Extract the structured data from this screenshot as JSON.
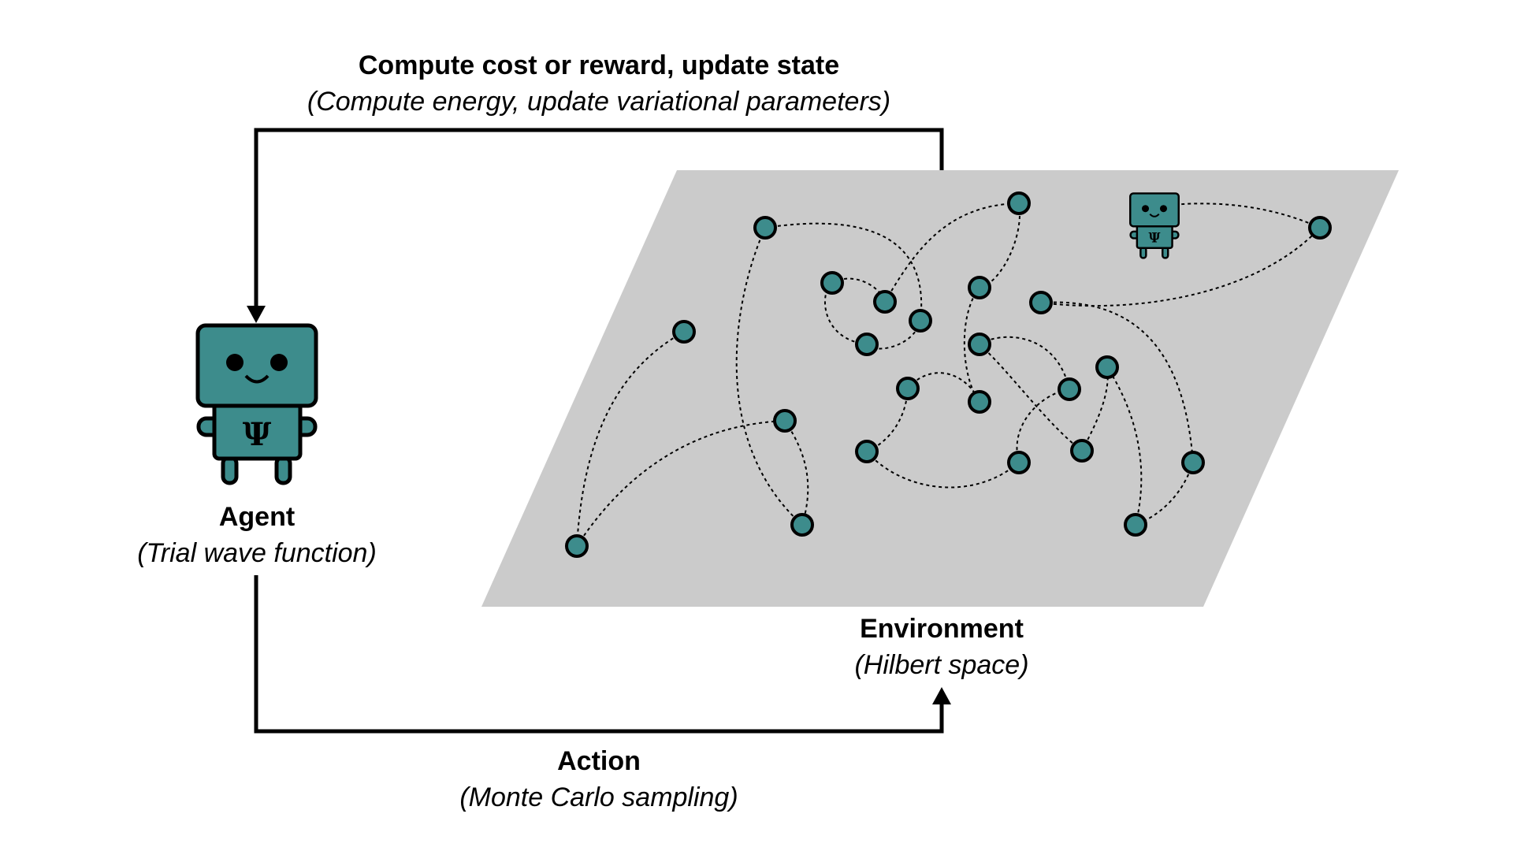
{
  "labels": {
    "top": {
      "title": "Compute cost or reward, update state",
      "subtitle": "(Compute energy, update variational parameters)"
    },
    "agent": {
      "title": "Agent",
      "subtitle": "(Trial wave function)"
    },
    "environment": {
      "title": "Environment",
      "subtitle": "(Hilbert space)"
    },
    "action": {
      "title": "Action",
      "subtitle": "(Monte Carlo sampling)"
    }
  },
  "agent_symbol": "Ψ",
  "colors": {
    "teal": "#3d8c8c",
    "plane": "#cbcbcb",
    "stroke": "#000000"
  }
}
